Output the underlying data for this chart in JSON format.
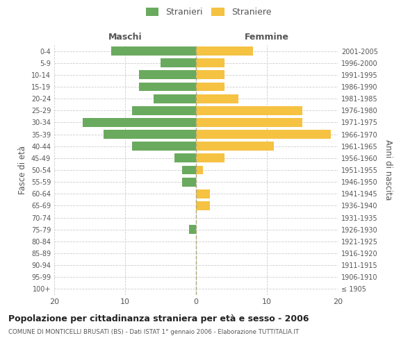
{
  "age_groups": [
    "100+",
    "95-99",
    "90-94",
    "85-89",
    "80-84",
    "75-79",
    "70-74",
    "65-69",
    "60-64",
    "55-59",
    "50-54",
    "45-49",
    "40-44",
    "35-39",
    "30-34",
    "25-29",
    "20-24",
    "15-19",
    "10-14",
    "5-9",
    "0-4"
  ],
  "birth_years": [
    "≤ 1905",
    "1906-1910",
    "1911-1915",
    "1916-1920",
    "1921-1925",
    "1926-1930",
    "1931-1935",
    "1936-1940",
    "1941-1945",
    "1946-1950",
    "1951-1955",
    "1956-1960",
    "1961-1965",
    "1966-1970",
    "1971-1975",
    "1976-1980",
    "1981-1985",
    "1986-1990",
    "1991-1995",
    "1996-2000",
    "2001-2005"
  ],
  "maschi": [
    0,
    0,
    0,
    0,
    0,
    1,
    0,
    0,
    0,
    2,
    2,
    3,
    9,
    13,
    16,
    9,
    6,
    8,
    8,
    5,
    12
  ],
  "femmine": [
    0,
    0,
    0,
    0,
    0,
    0,
    0,
    2,
    2,
    0,
    1,
    4,
    11,
    19,
    15,
    15,
    6,
    4,
    4,
    4,
    8
  ],
  "color_maschi": "#6aaa5e",
  "color_femmine": "#f5c242",
  "xlim": 20,
  "title": "Popolazione per cittadinanza straniera per età e sesso - 2006",
  "subtitle": "COMUNE DI MONTICELLI BRUSATI (BS) - Dati ISTAT 1° gennaio 2006 - Elaborazione TUTTITALIA.IT",
  "ylabel_left": "Fasce di età",
  "ylabel_right": "Anni di nascita",
  "label_maschi": "Stranieri",
  "label_femmine": "Straniere",
  "header_left": "Maschi",
  "header_right": "Femmine",
  "bg_color": "#ffffff",
  "grid_color": "#cccccc",
  "text_color": "#555555"
}
